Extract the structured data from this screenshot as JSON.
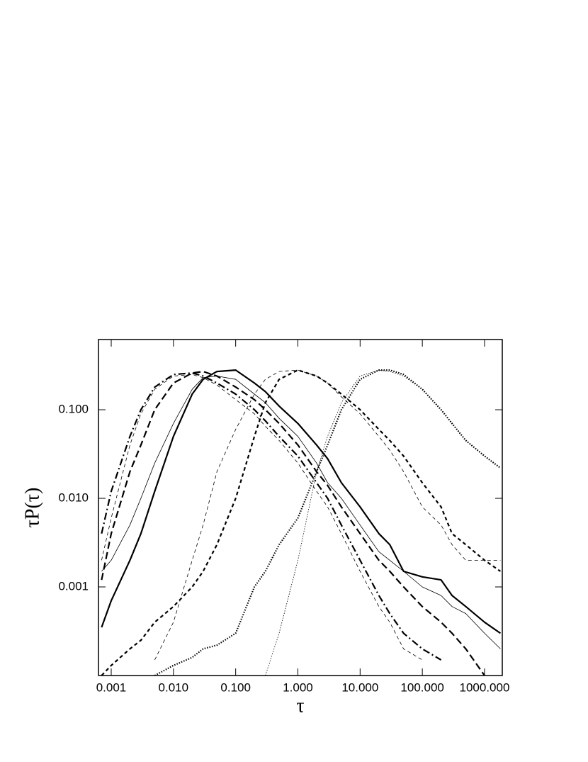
{
  "chart_data": {
    "type": "line",
    "x_label": "τ",
    "y_label": "τP(τ)",
    "x_scale": "log",
    "y_scale": "log",
    "xlim": [
      0.000624,
      1927
    ],
    "ylim": [
      0.0001,
      0.62
    ],
    "xticks": [
      0.001,
      {
        "value": 0.01,
        "label": "0.010"
      },
      {
        "value": 0.1,
        "label": "0.100"
      },
      {
        "value": 1,
        "label": "1.000"
      },
      {
        "value": 10,
        "label": "10.000"
      },
      {
        "value": 100,
        "label": "100.000"
      },
      {
        "value": 1000,
        "label": "1000.000"
      }
    ],
    "yticks": [
      0.001,
      {
        "value": 0.01,
        "label": "0.010"
      },
      {
        "value": 0.1,
        "label": "0.100"
      }
    ],
    "x": [
      0.0007,
      0.001,
      0.002,
      0.003,
      0.005,
      0.01,
      0.02,
      0.03,
      0.05,
      0.1,
      0.2,
      0.3,
      0.5,
      1,
      2,
      3,
      5,
      10,
      20,
      30,
      50,
      100,
      200,
      300,
      500,
      1000,
      1800
    ],
    "series": [
      {
        "color": "#000000",
        "style": "dash-dot",
        "weight": "thick",
        "values": [
          0.004,
          0.012,
          0.05,
          0.1,
          0.18,
          0.25,
          0.26,
          0.24,
          0.2,
          0.15,
          0.1,
          0.075,
          0.05,
          0.03,
          0.015,
          0.01,
          0.005,
          0.002,
          0.0008,
          0.0005,
          0.0003,
          0.0002,
          0.00015,
          null,
          null,
          null,
          null
        ]
      },
      {
        "color": "#000000",
        "style": "dashed",
        "weight": "thin",
        "values": [
          0.002,
          0.006,
          0.04,
          0.09,
          0.17,
          0.24,
          0.25,
          0.23,
          0.19,
          0.13,
          0.09,
          0.065,
          0.045,
          0.025,
          0.012,
          0.008,
          0.004,
          0.0015,
          0.0006,
          0.0004,
          0.0002,
          0.00015,
          null,
          null,
          null,
          null,
          null
        ]
      },
      {
        "color": "#000000",
        "style": "long-dashed",
        "weight": "thick",
        "values": [
          0.0012,
          0.004,
          0.02,
          0.04,
          0.1,
          0.2,
          0.26,
          0.27,
          0.24,
          0.18,
          0.13,
          0.1,
          0.07,
          0.04,
          0.02,
          0.014,
          0.008,
          0.004,
          0.002,
          0.0015,
          0.001,
          0.0006,
          0.0004,
          0.0003,
          0.0002,
          0.0001,
          null
        ]
      },
      {
        "color": "#000000",
        "style": "solid",
        "weight": "thick",
        "values": [
          0.00035,
          0.0007,
          0.002,
          0.004,
          0.012,
          0.05,
          0.15,
          0.22,
          0.27,
          0.28,
          0.2,
          0.16,
          0.11,
          0.07,
          0.04,
          0.028,
          0.015,
          0.008,
          0.004,
          0.003,
          0.0015,
          0.0013,
          0.0012,
          0.0008,
          0.0006,
          0.0004,
          0.0003
        ]
      },
      {
        "color": "#000000",
        "style": "solid",
        "weight": "thin",
        "values": [
          0.0015,
          0.002,
          0.005,
          0.01,
          0.025,
          0.07,
          0.17,
          0.23,
          0.24,
          0.22,
          0.15,
          0.12,
          0.08,
          0.05,
          0.025,
          0.015,
          0.01,
          0.005,
          0.0025,
          0.002,
          0.0015,
          0.001,
          0.0008,
          0.0006,
          0.0005,
          0.0003,
          0.0002
        ]
      },
      {
        "color": "#000000",
        "style": "dashed",
        "weight": "thick",
        "values": [
          0.0001,
          0.00013,
          0.0002,
          0.00025,
          0.0004,
          0.0006,
          0.001,
          0.0015,
          0.003,
          0.01,
          0.05,
          0.12,
          0.22,
          0.28,
          0.24,
          0.2,
          0.15,
          0.1,
          0.06,
          0.045,
          0.03,
          0.015,
          0.008,
          0.004,
          0.003,
          0.002,
          0.0015
        ]
      },
      {
        "color": "#000000",
        "style": "dashed",
        "weight": "thin",
        "values": [
          null,
          null,
          null,
          null,
          0.00015,
          0.0004,
          0.002,
          0.005,
          0.02,
          0.06,
          0.15,
          0.22,
          0.27,
          0.28,
          0.24,
          0.2,
          0.14,
          0.09,
          0.05,
          0.035,
          0.02,
          0.008,
          0.005,
          0.003,
          0.002,
          0.002,
          0.002
        ]
      },
      {
        "color": "#000000",
        "style": "dotted",
        "weight": "thick",
        "values": [
          null,
          null,
          null,
          null,
          0.0001,
          0.00013,
          0.00016,
          0.0002,
          0.00022,
          0.0003,
          0.001,
          0.0015,
          0.003,
          0.006,
          0.02,
          0.04,
          0.1,
          0.22,
          0.28,
          0.28,
          0.25,
          0.17,
          0.1,
          0.07,
          0.045,
          0.03,
          0.022
        ]
      },
      {
        "color": "#000000",
        "style": "dotted",
        "weight": "thin",
        "values": [
          null,
          null,
          null,
          null,
          null,
          null,
          null,
          null,
          null,
          null,
          null,
          0.0001,
          0.0003,
          0.002,
          0.02,
          0.05,
          0.12,
          0.24,
          0.28,
          0.27,
          0.24,
          0.17,
          0.1,
          0.07,
          0.045,
          0.03,
          0.022
        ]
      }
    ]
  }
}
